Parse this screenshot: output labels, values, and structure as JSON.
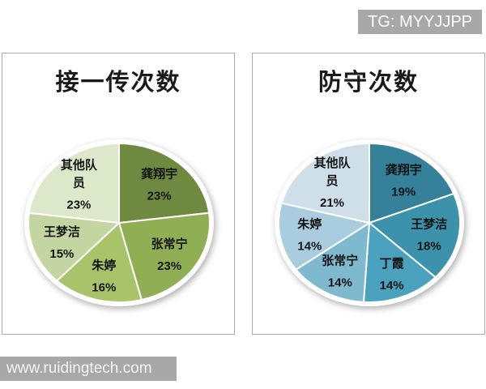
{
  "badge": {
    "label": "TG: MYYJJPP"
  },
  "watermark": {
    "label": "www.ruidingtech.com"
  },
  "colors": {
    "badge_bg": "#a8a8a8",
    "watermark_bg": "#a8a8a8",
    "panel_border": "#ababab",
    "label_text": "#141414",
    "title_text": "#1a1a1a"
  },
  "chart_data": [
    {
      "type": "pie",
      "title": "接一传次数",
      "legend_position": "none",
      "labels": "category name and percent inside slices",
      "start_angle_deg": 0,
      "direction": "clockwise",
      "slices": [
        {
          "name": "龚翔宇",
          "lines": [
            "龚翔宇"
          ],
          "value": 23,
          "percent_label": "23%",
          "color": "#6f8a40"
        },
        {
          "name": "张常宁",
          "lines": [
            "张常宁"
          ],
          "value": 23,
          "percent_label": "23%",
          "color": "#90ae53"
        },
        {
          "name": "朱婷",
          "lines": [
            "朱婷"
          ],
          "value": 16,
          "percent_label": "16%",
          "color": "#a9c36a"
        },
        {
          "name": "王梦洁",
          "lines": [
            "王梦洁"
          ],
          "value": 15,
          "percent_label": "15%",
          "color": "#c3d5a0"
        },
        {
          "name": "其他队员",
          "lines": [
            "其他队",
            "员"
          ],
          "value": 23,
          "percent_label": "23%",
          "color": "#dde7c9"
        }
      ]
    },
    {
      "type": "pie",
      "title": "防守次数",
      "legend_position": "none",
      "labels": "category name and percent inside slices",
      "start_angle_deg": 0,
      "direction": "clockwise",
      "slices": [
        {
          "name": "龚翔宇",
          "lines": [
            "龚翔宇"
          ],
          "value": 19,
          "percent_label": "19%",
          "color": "#35819a"
        },
        {
          "name": "王梦洁",
          "lines": [
            "王梦洁"
          ],
          "value": 18,
          "percent_label": "18%",
          "color": "#3d92ab"
        },
        {
          "name": "丁霞",
          "lines": [
            "丁霞"
          ],
          "value": 14,
          "percent_label": "14%",
          "color": "#4aa2bf"
        },
        {
          "name": "张常宁",
          "lines": [
            "张常宁"
          ],
          "value": 14,
          "percent_label": "14%",
          "color": "#7eb9cf"
        },
        {
          "name": "朱婷",
          "lines": [
            "朱婷"
          ],
          "value": 14,
          "percent_label": "14%",
          "color": "#a9ccdf"
        },
        {
          "name": "其他队员",
          "lines": [
            "其他队",
            "员"
          ],
          "value": 21,
          "percent_label": "21%",
          "color": "#cfdfe9"
        }
      ]
    }
  ]
}
